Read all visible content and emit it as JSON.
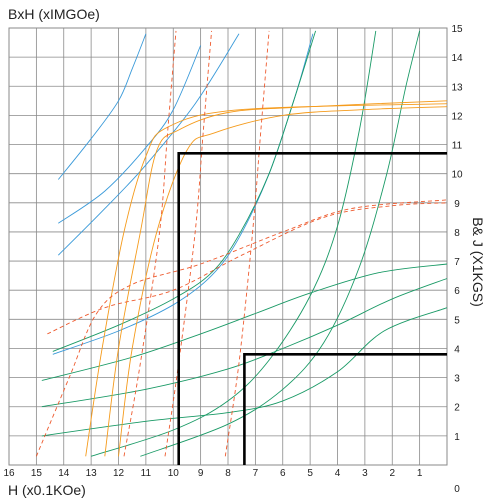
{
  "chart_data": {
    "type": "line",
    "title": "BxH (xIMGOe)",
    "xlabel": "H (x0.1KOe)",
    "ylabel": "B& J (X1KGS)",
    "xlim": [
      16,
      0
    ],
    "ylim": [
      0,
      15
    ],
    "x_ticks": [
      "16",
      "15",
      "14",
      "13",
      "12",
      "11",
      "10",
      "9",
      "8",
      "7",
      "6",
      "5",
      "4",
      "3",
      "2",
      "1"
    ],
    "y_ticks": [
      "1",
      "2",
      "3",
      "4",
      "5",
      "6",
      "7",
      "8",
      "9",
      "10",
      "11",
      "12",
      "13",
      "14",
      "15"
    ],
    "origin_label": "0",
    "grid": true,
    "colors": {
      "energy_product": "#3a9ad9",
      "demag_cgs": "#1a9a66",
      "intrinsic_20C": "#f59b1c",
      "intrinsic_hot": "#ee5a2e",
      "operating_point": "#000000"
    },
    "series": [
      {
        "group": "energy_product",
        "style": "solid",
        "points": [
          [
            14.2,
            7.2
          ],
          [
            12.5,
            8.8
          ],
          [
            11.0,
            10.3
          ],
          [
            9.2,
            12.4
          ],
          [
            7.6,
            14.8
          ]
        ]
      },
      {
        "group": "energy_product",
        "style": "solid",
        "points": [
          [
            14.2,
            8.3
          ],
          [
            12.5,
            9.4
          ],
          [
            11.0,
            10.9
          ],
          [
            10.0,
            12.2
          ],
          [
            9.0,
            14.4
          ]
        ]
      },
      {
        "group": "energy_product",
        "style": "solid",
        "points": [
          [
            14.2,
            9.8
          ],
          [
            13.0,
            11.2
          ],
          [
            12.0,
            12.5
          ],
          [
            11.5,
            13.6
          ],
          [
            11.0,
            14.8
          ]
        ]
      },
      {
        "group": "energy_product",
        "style": "solid",
        "points": [
          [
            14.4,
            3.8
          ],
          [
            12.0,
            4.6
          ],
          [
            10.0,
            5.5
          ],
          [
            8.6,
            6.5
          ],
          [
            7.6,
            7.8
          ],
          [
            6.5,
            10.0
          ],
          [
            5.5,
            12.8
          ],
          [
            4.9,
            14.8
          ]
        ]
      },
      {
        "group": "demag_cgs",
        "style": "solid",
        "points": [
          [
            14.4,
            3.9
          ],
          [
            12.0,
            4.8
          ],
          [
            10.0,
            5.7
          ],
          [
            8.6,
            6.6
          ],
          [
            7.6,
            7.9
          ],
          [
            6.5,
            10.0
          ],
          [
            5.6,
            12.5
          ],
          [
            4.8,
            14.9
          ]
        ]
      },
      {
        "group": "demag_cgs",
        "style": "solid",
        "points": [
          [
            13.0,
            0.3
          ],
          [
            10.0,
            1.2
          ],
          [
            8.0,
            2.2
          ],
          [
            6.5,
            3.6
          ],
          [
            5.0,
            5.8
          ],
          [
            4.0,
            8.2
          ],
          [
            3.2,
            11.5
          ],
          [
            2.6,
            14.9
          ]
        ]
      },
      {
        "group": "demag_cgs",
        "style": "solid",
        "points": [
          [
            11.2,
            0.3
          ],
          [
            8.0,
            1.4
          ],
          [
            6.0,
            2.6
          ],
          [
            4.5,
            4.2
          ],
          [
            3.2,
            6.8
          ],
          [
            2.2,
            10.0
          ],
          [
            1.5,
            13.0
          ],
          [
            1.0,
            14.9
          ]
        ]
      },
      {
        "group": "demag_cgs",
        "style": "solid",
        "points": [
          [
            14.8,
            1.0
          ],
          [
            11.0,
            1.5
          ],
          [
            8.0,
            1.8
          ],
          [
            6.0,
            2.2
          ],
          [
            4.0,
            3.2
          ],
          [
            2.3,
            4.6
          ],
          [
            0,
            5.4
          ]
        ]
      },
      {
        "group": "demag_cgs",
        "style": "solid",
        "points": [
          [
            14.8,
            2.0
          ],
          [
            11.0,
            2.6
          ],
          [
            8.0,
            3.3
          ],
          [
            6.0,
            4.0
          ],
          [
            4.0,
            4.8
          ],
          [
            2.0,
            5.7
          ],
          [
            0,
            6.4
          ]
        ]
      },
      {
        "group": "demag_cgs",
        "style": "solid",
        "points": [
          [
            14.8,
            2.9
          ],
          [
            11.5,
            3.7
          ],
          [
            9.0,
            4.5
          ],
          [
            7.0,
            5.2
          ],
          [
            5.0,
            5.9
          ],
          [
            2.5,
            6.6
          ],
          [
            0,
            6.9
          ]
        ]
      },
      {
        "group": "intrinsic_20C",
        "style": "solid",
        "points": [
          [
            12.5,
            0.3
          ],
          [
            12.0,
            4.0
          ],
          [
            11.2,
            8.0
          ],
          [
            10.6,
            10.8
          ],
          [
            9.8,
            11.5
          ],
          [
            8.0,
            12.1
          ],
          [
            5.0,
            12.3
          ],
          [
            0,
            12.5
          ]
        ]
      },
      {
        "group": "intrinsic_20C",
        "style": "solid",
        "points": [
          [
            12.0,
            0.3
          ],
          [
            11.5,
            4.0
          ],
          [
            10.6,
            8.0
          ],
          [
            9.5,
            10.8
          ],
          [
            8.5,
            11.4
          ],
          [
            6.0,
            12.0
          ],
          [
            3.0,
            12.2
          ],
          [
            0,
            12.3
          ]
        ]
      },
      {
        "group": "intrinsic_20C",
        "style": "solid",
        "points": [
          [
            13.2,
            0.3
          ],
          [
            12.6,
            4.0
          ],
          [
            11.8,
            8.0
          ],
          [
            11.0,
            10.6
          ],
          [
            10.2,
            11.6
          ],
          [
            7.5,
            12.2
          ],
          [
            0,
            12.4
          ]
        ]
      },
      {
        "group": "intrinsic_hot",
        "style": "dashed",
        "points": [
          [
            15.0,
            0.3
          ],
          [
            13.8,
            3.0
          ],
          [
            12.8,
            5.2
          ],
          [
            11.5,
            6.2
          ],
          [
            9.0,
            6.9
          ],
          [
            6.0,
            8.0
          ],
          [
            3.5,
            8.8
          ],
          [
            0,
            9.1
          ]
        ]
      },
      {
        "group": "intrinsic_hot",
        "style": "dashed",
        "points": [
          [
            14.6,
            4.5
          ],
          [
            12.5,
            5.4
          ],
          [
            10.0,
            6.0
          ],
          [
            7.5,
            7.2
          ],
          [
            4.5,
            8.5
          ],
          [
            2.0,
            8.9
          ],
          [
            0,
            9.0
          ]
        ]
      },
      {
        "group": "intrinsic_hot",
        "style": "dashed",
        "points": [
          [
            11.8,
            0.3
          ],
          [
            11.2,
            3.5
          ],
          [
            10.5,
            8.0
          ],
          [
            10.2,
            11.5
          ],
          [
            9.9,
            14.9
          ]
        ]
      },
      {
        "group": "intrinsic_hot",
        "style": "dashed",
        "points": [
          [
            10.3,
            0.3
          ],
          [
            9.8,
            3.5
          ],
          [
            9.2,
            8.0
          ],
          [
            8.9,
            11.5
          ],
          [
            8.6,
            14.9
          ]
        ]
      },
      {
        "group": "intrinsic_hot",
        "style": "dashed",
        "points": [
          [
            8.1,
            0.3
          ],
          [
            7.6,
            3.5
          ],
          [
            7.1,
            8.0
          ],
          [
            6.8,
            11.5
          ],
          [
            6.5,
            14.9
          ]
        ]
      },
      {
        "group": "operating_point",
        "style": "bold",
        "points": [
          [
            9.8,
            0
          ],
          [
            9.8,
            10.7
          ],
          [
            0,
            10.7
          ]
        ]
      },
      {
        "group": "operating_point",
        "style": "bold",
        "points": [
          [
            7.4,
            0
          ],
          [
            7.4,
            3.8
          ],
          [
            0,
            3.8
          ]
        ]
      }
    ]
  }
}
